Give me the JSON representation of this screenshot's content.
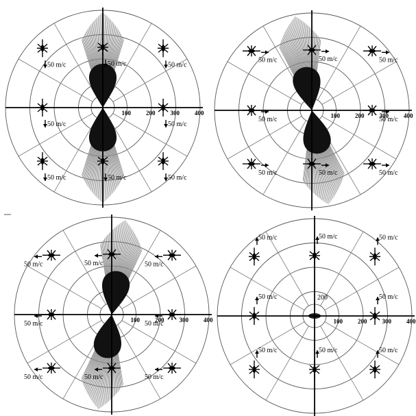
{
  "panels": [
    {
      "id": "top-left",
      "tick_labels": [
        "100",
        "200",
        "300",
        "400"
      ],
      "velocity_label": "50 m/c",
      "scale_label": "",
      "lobe_direction_deg": 90,
      "marker_dir": "down"
    },
    {
      "id": "top-right",
      "tick_labels": [
        "100",
        "200",
        "300",
        "400"
      ],
      "velocity_label": "50 m/c",
      "scale_label": "",
      "lobe_direction_deg": 100,
      "marker_dir": "right"
    },
    {
      "id": "bottom-left",
      "tick_labels": [
        "100",
        "200",
        "300",
        "400"
      ],
      "velocity_label": "50 m/c",
      "scale_label": "",
      "lobe_direction_deg": 82,
      "marker_dir": "left"
    },
    {
      "id": "bottom-right",
      "tick_labels": [
        "100",
        "200",
        "300",
        "400"
      ],
      "velocity_label": "50 m/c",
      "scale_label": "200",
      "lobe_direction_deg": 90,
      "marker_dir": "up"
    }
  ]
}
